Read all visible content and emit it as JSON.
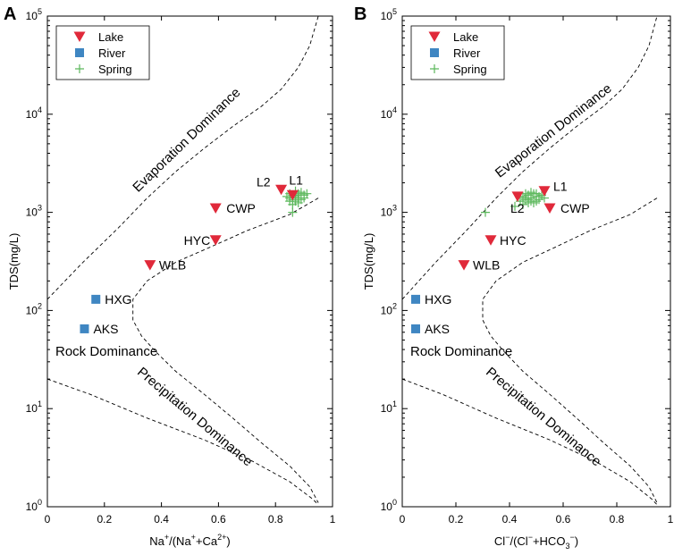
{
  "chart_data": [
    {
      "type": "scatter",
      "panel_label": "A",
      "xlabel_parts": [
        {
          "t": "Na",
          "s": "normal"
        },
        {
          "t": "+",
          "s": "sup"
        },
        {
          "t": "/(Na",
          "s": "normal"
        },
        {
          "t": "+",
          "s": "sup"
        },
        {
          "t": "+Ca",
          "s": "normal"
        },
        {
          "t": "2+",
          "s": "sup"
        },
        {
          "t": ")",
          "s": "normal"
        }
      ],
      "ylabel": "TDS(mg/L)",
      "xlim": [
        0,
        1
      ],
      "ylim_log10": [
        0,
        5
      ],
      "x_ticks": [
        {
          "v": 0,
          "label": "0"
        },
        {
          "v": 0.2,
          "label": "0.2"
        },
        {
          "v": 0.4,
          "label": "0.4"
        },
        {
          "v": 0.6,
          "label": "0.6"
        },
        {
          "v": 0.8,
          "label": "0.8"
        },
        {
          "v": 1,
          "label": "1"
        }
      ],
      "y_ticks": [
        {
          "v": 1,
          "base": "10",
          "exp": "0"
        },
        {
          "v": 10,
          "base": "10",
          "exp": "1"
        },
        {
          "v": 100,
          "base": "10",
          "exp": "2"
        },
        {
          "v": 1000,
          "base": "10",
          "exp": "3"
        },
        {
          "v": 10000,
          "base": "10",
          "exp": "4"
        },
        {
          "v": 100000,
          "base": "10",
          "exp": "5"
        }
      ],
      "legend": [
        {
          "label": "Lake",
          "marker": "triangle-down",
          "color": "#e0293a"
        },
        {
          "label": "River",
          "marker": "square",
          "color": "#3f86c2"
        },
        {
          "label": "Spring",
          "marker": "plus",
          "color": "#5cb85c"
        }
      ],
      "region_labels": [
        "Evaporation Dominance",
        "Rock Dominance",
        "Precipitation Dominance"
      ],
      "boundary_upper": [
        [
          0,
          130
        ],
        [
          0.12,
          300
        ],
        [
          0.25,
          700
        ],
        [
          0.35,
          1400
        ],
        [
          0.45,
          2600
        ],
        [
          0.55,
          4500
        ],
        [
          0.65,
          7500
        ],
        [
          0.75,
          12000
        ],
        [
          0.82,
          18000
        ],
        [
          0.88,
          30000
        ],
        [
          0.92,
          50000
        ],
        [
          0.95,
          100000
        ]
      ],
      "boundary_lower": [
        [
          0.95,
          1400
        ],
        [
          0.85,
          950
        ],
        [
          0.7,
          650
        ],
        [
          0.57,
          440
        ],
        [
          0.45,
          310
        ],
        [
          0.35,
          200
        ],
        [
          0.3,
          130
        ],
        [
          0.3,
          80
        ],
        [
          0.33,
          55
        ],
        [
          0.38,
          38
        ],
        [
          0.45,
          24
        ],
        [
          0.55,
          14
        ],
        [
          0.65,
          8
        ],
        [
          0.75,
          4.5
        ],
        [
          0.85,
          2.6
        ],
        [
          0.92,
          1.6
        ],
        [
          0.95,
          1.1
        ]
      ],
      "boundary_bottom": [
        [
          0,
          20
        ],
        [
          0.15,
          14
        ],
        [
          0.35,
          8
        ],
        [
          0.55,
          4.8
        ],
        [
          0.72,
          2.9
        ],
        [
          0.85,
          1.8
        ],
        [
          0.93,
          1.2
        ],
        [
          0.95,
          1.05
        ]
      ],
      "lake": [
        {
          "name": "L1",
          "x": 0.86,
          "y": 1500
        },
        {
          "name": "L2",
          "x": 0.82,
          "y": 1700
        },
        {
          "name": "CWP",
          "x": 0.59,
          "y": 1100
        },
        {
          "name": "HYC",
          "x": 0.59,
          "y": 520
        },
        {
          "name": "WLB",
          "x": 0.36,
          "y": 290
        }
      ],
      "river": [
        {
          "name": "HXG",
          "x": 0.17,
          "y": 130
        },
        {
          "name": "AKS",
          "x": 0.13,
          "y": 65
        }
      ],
      "spring": [
        [
          0.85,
          1400
        ],
        [
          0.86,
          1500
        ],
        [
          0.87,
          1450
        ],
        [
          0.88,
          1550
        ],
        [
          0.86,
          1350
        ],
        [
          0.89,
          1600
        ],
        [
          0.87,
          1300
        ],
        [
          0.85,
          1550
        ],
        [
          0.88,
          1400
        ],
        [
          0.9,
          1500
        ],
        [
          0.86,
          1200
        ],
        [
          0.87,
          1650
        ],
        [
          0.89,
          1350
        ],
        [
          0.84,
          1450
        ],
        [
          0.86,
          1000
        ],
        [
          0.91,
          1550
        ],
        [
          0.88,
          1250
        ],
        [
          0.85,
          1300
        ],
        [
          0.87,
          1500
        ],
        [
          0.9,
          1400
        ]
      ]
    },
    {
      "type": "scatter",
      "panel_label": "B",
      "xlabel_parts": [
        {
          "t": "Cl",
          "s": "normal"
        },
        {
          "t": "−",
          "s": "sup"
        },
        {
          "t": "/(Cl",
          "s": "normal"
        },
        {
          "t": "−",
          "s": "sup"
        },
        {
          "t": "+HCO",
          "s": "normal"
        },
        {
          "t": "3",
          "s": "sub"
        },
        {
          "t": "−",
          "s": "sup"
        },
        {
          "t": ")",
          "s": "normal"
        }
      ],
      "ylabel": "TDS(mg/L)",
      "xlim": [
        0,
        1
      ],
      "ylim_log10": [
        0,
        5
      ],
      "x_ticks": [
        {
          "v": 0,
          "label": "0"
        },
        {
          "v": 0.2,
          "label": "0.2"
        },
        {
          "v": 0.4,
          "label": "0.4"
        },
        {
          "v": 0.6,
          "label": "0.6"
        },
        {
          "v": 0.8,
          "label": "0.8"
        },
        {
          "v": 1,
          "label": "1"
        }
      ],
      "y_ticks": [
        {
          "v": 1,
          "base": "10",
          "exp": "0"
        },
        {
          "v": 10,
          "base": "10",
          "exp": "1"
        },
        {
          "v": 100,
          "base": "10",
          "exp": "2"
        },
        {
          "v": 1000,
          "base": "10",
          "exp": "3"
        },
        {
          "v": 10000,
          "base": "10",
          "exp": "4"
        },
        {
          "v": 100000,
          "base": "10",
          "exp": "5"
        }
      ],
      "legend": [
        {
          "label": "Lake",
          "marker": "triangle-down",
          "color": "#e0293a"
        },
        {
          "label": "River",
          "marker": "square",
          "color": "#3f86c2"
        },
        {
          "label": "Spring",
          "marker": "plus",
          "color": "#5cb85c"
        }
      ],
      "region_labels": [
        "Evaporation Dominance",
        "Rock Dominance",
        "Precipitation Dominance"
      ],
      "boundary_upper": [
        [
          0,
          130
        ],
        [
          0.12,
          300
        ],
        [
          0.25,
          700
        ],
        [
          0.35,
          1400
        ],
        [
          0.45,
          2600
        ],
        [
          0.55,
          4500
        ],
        [
          0.65,
          7500
        ],
        [
          0.75,
          12000
        ],
        [
          0.82,
          18000
        ],
        [
          0.88,
          30000
        ],
        [
          0.92,
          50000
        ],
        [
          0.95,
          100000
        ]
      ],
      "boundary_lower": [
        [
          0.95,
          1400
        ],
        [
          0.85,
          950
        ],
        [
          0.7,
          650
        ],
        [
          0.57,
          440
        ],
        [
          0.45,
          310
        ],
        [
          0.35,
          200
        ],
        [
          0.3,
          130
        ],
        [
          0.3,
          80
        ],
        [
          0.33,
          55
        ],
        [
          0.38,
          38
        ],
        [
          0.45,
          24
        ],
        [
          0.55,
          14
        ],
        [
          0.65,
          8
        ],
        [
          0.75,
          4.5
        ],
        [
          0.85,
          2.6
        ],
        [
          0.92,
          1.6
        ],
        [
          0.95,
          1.1
        ]
      ],
      "boundary_bottom": [
        [
          0,
          20
        ],
        [
          0.15,
          14
        ],
        [
          0.35,
          8
        ],
        [
          0.55,
          4.8
        ],
        [
          0.72,
          2.9
        ],
        [
          0.85,
          1.8
        ],
        [
          0.93,
          1.2
        ],
        [
          0.95,
          1.05
        ]
      ],
      "lake": [
        {
          "name": "L1",
          "x": 0.53,
          "y": 1650
        },
        {
          "name": "L2",
          "x": 0.43,
          "y": 1450
        },
        {
          "name": "CWP",
          "x": 0.55,
          "y": 1100
        },
        {
          "name": "HYC",
          "x": 0.33,
          "y": 520
        },
        {
          "name": "WLB",
          "x": 0.23,
          "y": 290
        }
      ],
      "river": [
        {
          "name": "HXG",
          "x": 0.05,
          "y": 130
        },
        {
          "name": "AKS",
          "x": 0.05,
          "y": 65
        }
      ],
      "spring": [
        [
          0.44,
          1300
        ],
        [
          0.45,
          1450
        ],
        [
          0.46,
          1350
        ],
        [
          0.47,
          1500
        ],
        [
          0.48,
          1400
        ],
        [
          0.49,
          1550
        ],
        [
          0.5,
          1450
        ],
        [
          0.51,
          1350
        ],
        [
          0.47,
          1250
        ],
        [
          0.46,
          1550
        ],
        [
          0.48,
          1600
        ],
        [
          0.5,
          1300
        ],
        [
          0.52,
          1500
        ],
        [
          0.45,
          1200
        ],
        [
          0.49,
          1250
        ],
        [
          0.53,
          1400
        ],
        [
          0.47,
          1350
        ],
        [
          0.5,
          1550
        ],
        [
          0.44,
          1450
        ],
        [
          0.48,
          1300
        ],
        [
          0.31,
          1000
        ],
        [
          0.42,
          1150
        ],
        [
          0.51,
          1450
        ],
        [
          0.46,
          1400
        ]
      ]
    }
  ]
}
